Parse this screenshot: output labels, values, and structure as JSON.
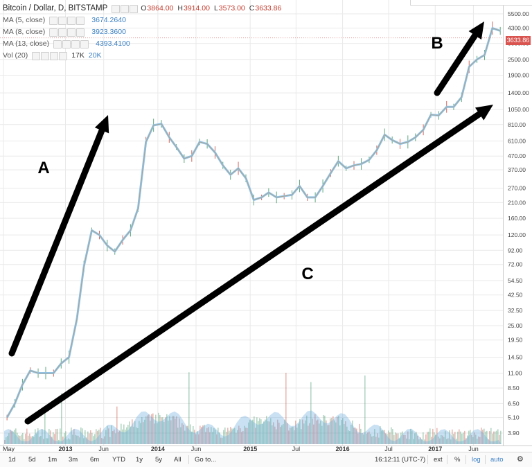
{
  "legend": {
    "title": "Bitcoin / Dollar, D, BITSTAMP",
    "ohlc": [
      {
        "k": "O",
        "v": "3864.00"
      },
      {
        "k": "H",
        "v": "3914.00"
      },
      {
        "k": "L",
        "v": "3573.00"
      },
      {
        "k": "C",
        "v": "3633.86"
      }
    ],
    "indicators": [
      {
        "name": "MA (5, close)",
        "value": "3674.2640"
      },
      {
        "name": "MA (8, close)",
        "value": "3923.3600"
      },
      {
        "name": "MA (13, close)",
        "value": "4393.4100"
      }
    ],
    "volume": {
      "name": "Vol (20)",
      "v1": "17K",
      "v2": "20K"
    }
  },
  "last_price_label": "3633.86",
  "chart_data": {
    "type": "line",
    "title": "Bitcoin / Dollar, D, BITSTAMP",
    "y_scale": "log",
    "ylim": [
      3.5,
      6000
    ],
    "y_ticks": [
      "5500.00",
      "4300.00",
      "3300.00",
      "2500.00",
      "1900.00",
      "1400.00",
      "1050.00",
      "810.00",
      "610.00",
      "470.00",
      "370.00",
      "270.00",
      "210.00",
      "160.00",
      "120.00",
      "92.00",
      "72.00",
      "54.50",
      "42.50",
      "32.50",
      "25.00",
      "19.50",
      "14.50",
      "11.00",
      "8.50",
      "6.50",
      "5.10",
      "3.90"
    ],
    "x_ticks": [
      "May",
      "2013",
      "Jun",
      "2014",
      "Jun",
      "2015",
      "Jul",
      "2016",
      "Jul",
      "2017",
      "Jun"
    ],
    "series": [
      {
        "dates": [
          "2012-05",
          "2012-06",
          "2012-07",
          "2012-08",
          "2012-09",
          "2012-10",
          "2012-11",
          "2012-12",
          "2013-01",
          "2013-02",
          "2013-03",
          "2013-04",
          "2013-05",
          "2013-06",
          "2013-07",
          "2013-08",
          "2013-09",
          "2013-10",
          "2013-11",
          "2013-12",
          "2014-01",
          "2014-02",
          "2014-03",
          "2014-04",
          "2014-05",
          "2014-06",
          "2014-07",
          "2014-08",
          "2014-09",
          "2014-10",
          "2014-11",
          "2014-12",
          "2015-01",
          "2015-02",
          "2015-03",
          "2015-04",
          "2015-05",
          "2015-06",
          "2015-07",
          "2015-08",
          "2015-09",
          "2015-10",
          "2015-11",
          "2015-12",
          "2016-01",
          "2016-02",
          "2016-03",
          "2016-04",
          "2016-05",
          "2016-06",
          "2016-07",
          "2016-08",
          "2016-09",
          "2016-10",
          "2016-11",
          "2016-12",
          "2017-01",
          "2017-02",
          "2017-03",
          "2017-04",
          "2017-05",
          "2017-06",
          "2017-07",
          "2017-08",
          "2017-09"
        ],
        "values": [
          5.1,
          6.5,
          9,
          11.5,
          11,
          11,
          11,
          13,
          14.5,
          28,
          70,
          130,
          120,
          100,
          90,
          110,
          130,
          190,
          600,
          800,
          820,
          650,
          550,
          450,
          470,
          600,
          580,
          500,
          400,
          340,
          380,
          320,
          220,
          230,
          250,
          230,
          235,
          240,
          280,
          230,
          230,
          280,
          350,
          430,
          380,
          400,
          410,
          440,
          520,
          680,
          620,
          580,
          600,
          650,
          740,
          960,
          950,
          1100,
          1100,
          1300,
          2200,
          2500,
          2700,
          4300,
          4100
        ]
      },
      {
        "name": "Vol (20)",
        "values": []
      }
    ],
    "annotations": [
      "A",
      "B",
      "C"
    ],
    "grid": true
  },
  "bottom_bar": {
    "ranges": [
      "1d",
      "5d",
      "1m",
      "3m",
      "6m",
      "YTD",
      "1y",
      "5y",
      "All"
    ],
    "goto": "Go to...",
    "time": "16:12:11 (UTC-7)",
    "options": [
      "ext",
      "%",
      "log",
      "auto"
    ]
  },
  "colors": {
    "price_line": "#8fc3ea",
    "candle_down": "#c0392b",
    "candle_up": "#2a8c55",
    "annotation_arrow": "#000000",
    "grid": "#e9e9e9",
    "price_label_bg": "#d9534f"
  },
  "icons": [
    "settings-gear-icon"
  ]
}
